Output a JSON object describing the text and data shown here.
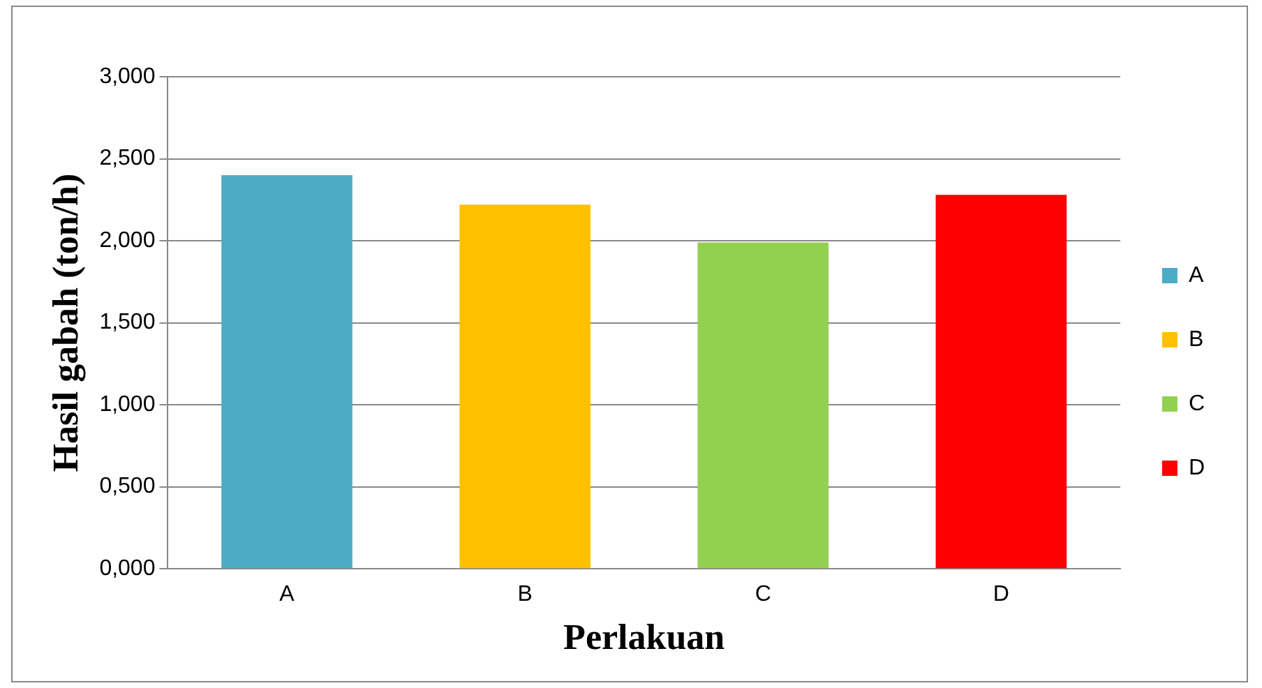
{
  "chart_data": {
    "type": "bar",
    "xlabel": "Perlakuan",
    "ylabel": "Hasil gabah (ton/h)",
    "categories": [
      "A",
      "B",
      "C",
      "D"
    ],
    "series": [
      {
        "name": "A",
        "color": "#4bacc6",
        "values": [
          2.4,
          null,
          null,
          null
        ]
      },
      {
        "name": "B",
        "color": "#ffc000",
        "values": [
          null,
          2.22,
          null,
          null
        ]
      },
      {
        "name": "C",
        "color": "#92d050",
        "values": [
          null,
          null,
          1.99,
          null
        ]
      },
      {
        "name": "D",
        "color": "#ff0000",
        "values": [
          null,
          null,
          null,
          2.28
        ]
      }
    ],
    "ylim": [
      0,
      3
    ],
    "yticks": [
      {
        "value": 0,
        "label": "0,000"
      },
      {
        "value": 0.5,
        "label": "0,500"
      },
      {
        "value": 1,
        "label": "1,000"
      },
      {
        "value": 1.5,
        "label": "1,500"
      },
      {
        "value": 2,
        "label": "2,000"
      },
      {
        "value": 2.5,
        "label": "2,500"
      },
      {
        "value": 3,
        "label": "3,000"
      }
    ],
    "grid": "y",
    "legend": "right"
  }
}
